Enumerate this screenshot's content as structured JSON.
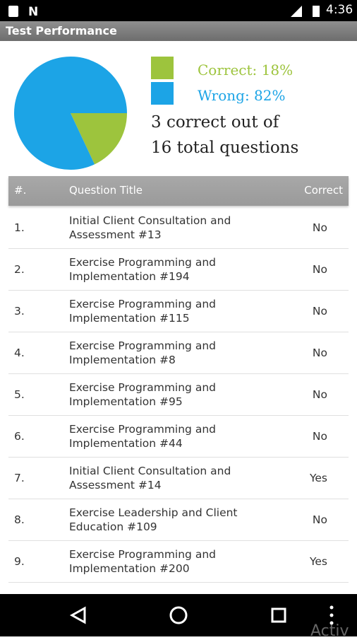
{
  "status_bar": {
    "time": "4:36"
  },
  "app_bar": {
    "title": "Test Performance"
  },
  "chart_data": {
    "type": "pie",
    "categories": [
      "Correct",
      "Wrong"
    ],
    "values": [
      18,
      82
    ],
    "value_labels": [
      "Correct: 18%",
      "Wrong: 82%"
    ],
    "colors": [
      "#9dc43d",
      "#1ca4e6"
    ]
  },
  "summary": [
    "3 correct out of",
    "16 total questions"
  ],
  "table": {
    "header": [
      "#.",
      "Question Title",
      "Correct"
    ],
    "rows": [
      [
        "1.",
        [
          "Initial Client Consultation and",
          "Assessment #13"
        ],
        "No"
      ],
      [
        "2.",
        [
          "Exercise Programming and",
          "Implementation #194"
        ],
        "No"
      ],
      [
        "3.",
        [
          "Exercise Programming and",
          "Implementation #115"
        ],
        "No"
      ],
      [
        "4.",
        [
          "Exercise Programming and",
          "Implementation #8"
        ],
        "No"
      ],
      [
        "5.",
        [
          "Exercise Programming and",
          "Implementation #95"
        ],
        "No"
      ],
      [
        "6.",
        [
          "Exercise Programming and",
          "Implementation #44"
        ],
        "No"
      ],
      [
        "7.",
        [
          "Initial Client Consultation and",
          "Assessment #14"
        ],
        "Yes"
      ],
      [
        "8.",
        [
          "Exercise Leadership and Client",
          "Education #109"
        ],
        "No"
      ],
      [
        "9.",
        [
          "Exercise Programming and",
          "Implementation #200"
        ],
        "Yes"
      ]
    ]
  },
  "watermark": "Activ"
}
